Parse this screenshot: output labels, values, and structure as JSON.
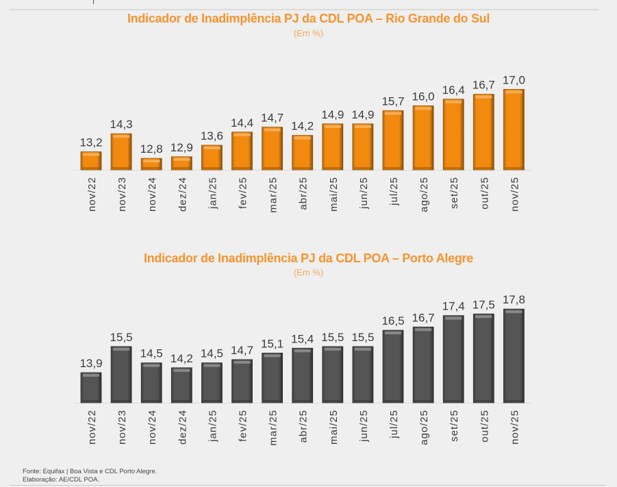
{
  "footer": {
    "source": "Fonte: Equifax | Boa Vista e CDL Porto Alegre.",
    "elaboration": "Elaboração: AE/CDL POA."
  },
  "chart_data": [
    {
      "type": "bar",
      "title": "Indicador de Inadimplência PJ da CDL POA – Rio Grande do Sul",
      "subtitle": "(Em %)",
      "xlabel": "",
      "ylabel": "",
      "ylim": [
        12.1,
        17.0
      ],
      "grid": false,
      "legend": "none",
      "color": "#f28a10",
      "categories": [
        "nov/22",
        "nov/23",
        "nov/24",
        "dez/24",
        "jan/25",
        "fev/25",
        "mar/25",
        "abr/25",
        "mai/25",
        "jun/25",
        "jul/25",
        "ago/25",
        "set/25",
        "out/25",
        "nov/25"
      ],
      "values": [
        13.2,
        14.3,
        12.8,
        12.9,
        13.6,
        14.4,
        14.7,
        14.2,
        14.9,
        14.9,
        15.7,
        16.0,
        16.4,
        16.7,
        17.0
      ],
      "value_labels": [
        "13,2",
        "14,3",
        "12,8",
        "12,9",
        "13,6",
        "14,4",
        "14,7",
        "14,2",
        "14,9",
        "14,9",
        "15,7",
        "16,0",
        "16,4",
        "16,7",
        "17,0"
      ]
    },
    {
      "type": "bar",
      "title": "Indicador de Inadimplência PJ da CDL POA – Porto Alegre",
      "subtitle": "(Em %)",
      "xlabel": "",
      "ylabel": "",
      "ylim": [
        12.05,
        17.8
      ],
      "grid": false,
      "legend": "none",
      "color": "#555555",
      "categories": [
        "nov/22",
        "nov/23",
        "nov/24",
        "dez/24",
        "jan/25",
        "fev/25",
        "mar/25",
        "abr/25",
        "mai/25",
        "jun/25",
        "jul/25",
        "ago/25",
        "set/25",
        "out/25",
        "nov/25"
      ],
      "values": [
        13.9,
        15.5,
        14.5,
        14.2,
        14.5,
        14.7,
        15.1,
        15.4,
        15.5,
        15.5,
        16.5,
        16.7,
        17.4,
        17.5,
        17.8
      ],
      "value_labels": [
        "13,9",
        "15,5",
        "14,5",
        "14,2",
        "14,5",
        "14,7",
        "15,1",
        "15,4",
        "15,5",
        "15,5",
        "16,5",
        "16,7",
        "17,4",
        "17,5",
        "17,8"
      ]
    }
  ]
}
